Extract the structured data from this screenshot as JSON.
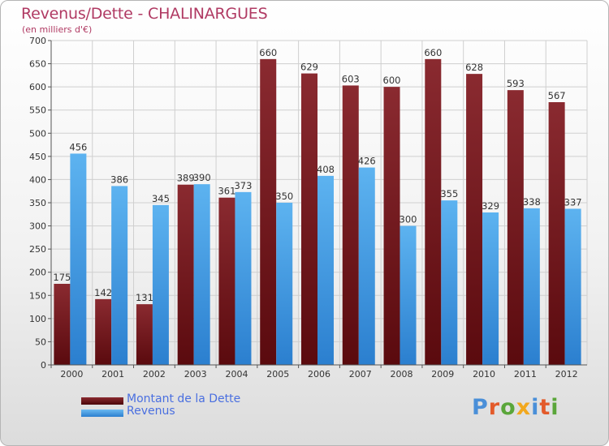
{
  "title": "Revenus/Dette - CHALINARGUES",
  "subtitle": "(en milliers d'€)",
  "logo": {
    "text": "Proxiti",
    "letters": [
      {
        "ch": "P",
        "color": "#4a8fd8"
      },
      {
        "ch": "r",
        "color": "#e35a2a"
      },
      {
        "ch": "o",
        "color": "#5aa63a"
      },
      {
        "ch": "x",
        "color": "#f2a81e"
      },
      {
        "ch": "i",
        "color": "#4a8fd8"
      },
      {
        "ch": "t",
        "color": "#e35a2a"
      },
      {
        "ch": "i",
        "color": "#5aa63a"
      }
    ]
  },
  "chart_data": {
    "type": "bar",
    "title": "Revenus/Dette - CHALINARGUES",
    "subtitle": "(en milliers d'€)",
    "categories": [
      "2000",
      "2001",
      "2002",
      "2003",
      "2004",
      "2005",
      "2006",
      "2007",
      "2008",
      "2009",
      "2010",
      "2011",
      "2012"
    ],
    "series": [
      {
        "name": "Montant de la Dette",
        "color": "#7a1a1f",
        "values": [
          175,
          142,
          131,
          389,
          361,
          660,
          629,
          603,
          600,
          660,
          628,
          593,
          567
        ]
      },
      {
        "name": "Revenus",
        "color": "#4aa3e6",
        "values": [
          456,
          386,
          345,
          390,
          373,
          350,
          408,
          426,
          300,
          355,
          329,
          338,
          337
        ]
      }
    ],
    "ylim": [
      0,
      700
    ],
    "yticks": [
      0,
      50,
      100,
      150,
      200,
      250,
      300,
      350,
      400,
      450,
      500,
      550,
      600,
      650,
      700
    ],
    "grid": true,
    "legend_position": "bottom-left"
  }
}
